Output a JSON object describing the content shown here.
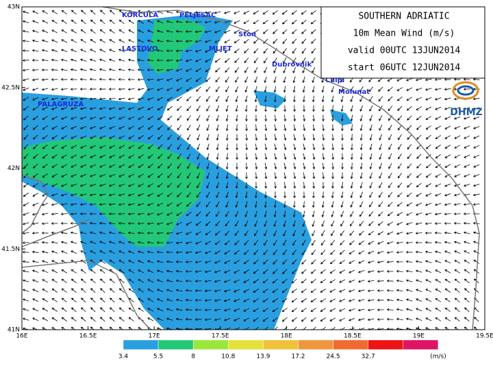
{
  "title_box": {
    "lines": [
      "SOUTHERN ADRIATIC",
      "10m Mean Wind (m/s)",
      "valid 00UTC 13JUN2014",
      "start 06UTC 12JUN2014"
    ]
  },
  "logo": "DHMZ",
  "places": [
    "KORCULA",
    "PELJESAC",
    "Ston",
    "LASTOVO",
    "MLJET",
    "Dubrovnik",
    "Cilipi",
    "Molunat",
    "PALAGRUZA"
  ],
  "lat_labels": [
    "43N",
    "42.5N",
    "42N",
    "41.5N",
    "41N"
  ],
  "lon_labels": [
    "16E",
    "16.5E",
    "17E",
    "17.5E",
    "18E",
    "18.5E",
    "19E",
    "19.5E"
  ],
  "legend": {
    "labels": [
      "3.4",
      "5.5",
      "8",
      "10.8",
      "13.9",
      "17.2",
      "24.5",
      "32.7"
    ],
    "colors": [
      "#2a9fe0",
      "#22c878",
      "#9ae63c",
      "#e4e23a",
      "#f0c23a",
      "#f0963c",
      "#f06a32",
      "#ee1414",
      "#de1464"
    ],
    "unit": "(m/s)"
  }
}
